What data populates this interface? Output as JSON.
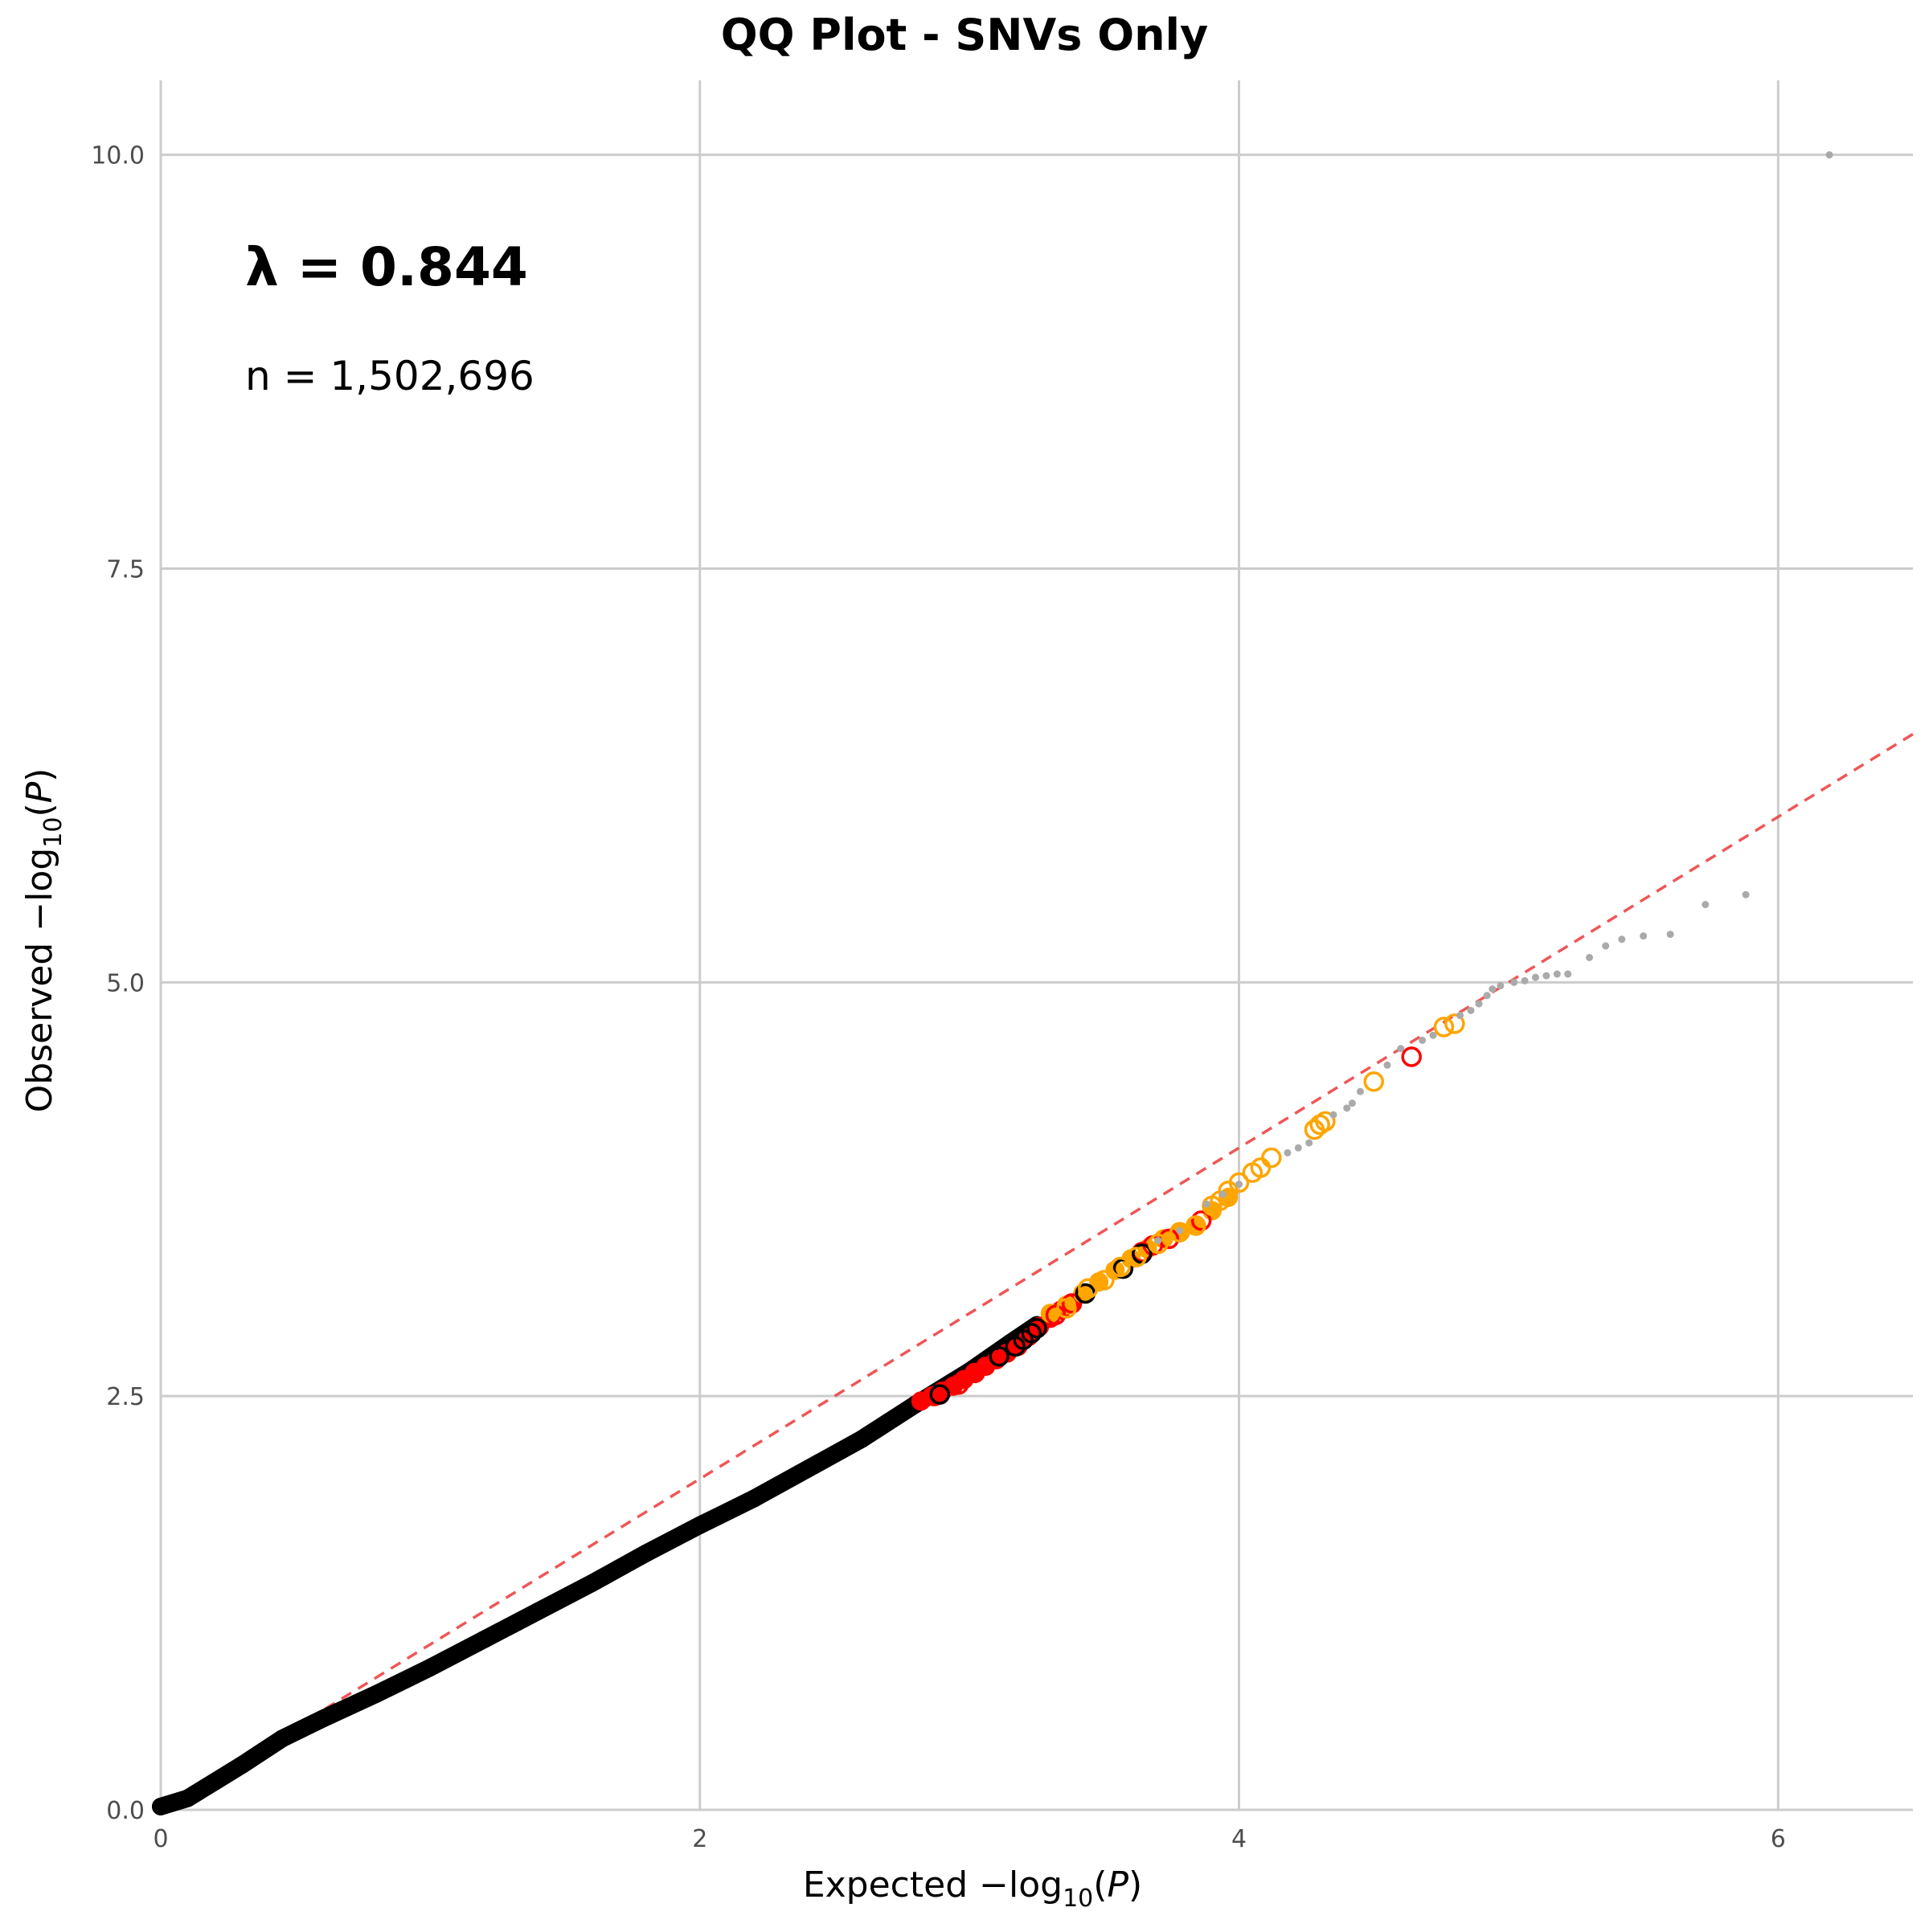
{
  "chart_data": {
    "type": "scatter",
    "title": "QQ Plot - SNVs Only",
    "xlabel": {
      "prefix": "Expected ",
      "dash": "−",
      "log": "log",
      "sub": "10",
      "open": "(",
      "var": "P",
      "close": ")"
    },
    "ylabel": {
      "prefix": "Observed ",
      "dash": "−",
      "log": "log",
      "sub": "10",
      "open": "(",
      "var": "P",
      "close": ")"
    },
    "xlim": [
      0,
      6.5
    ],
    "ylim": [
      0,
      10.45
    ],
    "x_ticks": [
      0,
      2,
      4,
      6
    ],
    "x_tick_labels": [
      "0",
      "2",
      "4",
      "6"
    ],
    "y_ticks": [
      0,
      2.5,
      5,
      7.5,
      10
    ],
    "y_tick_labels": [
      "0.0",
      "2.5",
      "5.0",
      "7.5",
      "10.0"
    ],
    "grid": true,
    "annotations": {
      "lambda": "λ = 0.844",
      "n": "n = 1,502,696"
    },
    "reference_line": {
      "slope": 1,
      "intercept": 0,
      "color": "#ee4444",
      "style": "dashed"
    },
    "colors": {
      "bulk": "#000000",
      "red": "#ff0000",
      "orange": "#ffa500",
      "gray": "#aaaaaa",
      "grid": "#cccccc"
    },
    "series": [
      {
        "style": "bulk-curve",
        "color": "#000000",
        "points": [
          [
            0,
            0.02
          ],
          [
            0.1,
            0.07
          ],
          [
            0.2,
            0.17
          ],
          [
            0.3,
            0.27
          ],
          [
            0.45,
            0.43
          ],
          [
            0.6,
            0.55
          ],
          [
            0.8,
            0.7
          ],
          [
            1.0,
            0.86
          ],
          [
            1.2,
            1.03
          ],
          [
            1.4,
            1.2
          ],
          [
            1.6,
            1.37
          ],
          [
            1.8,
            1.55
          ],
          [
            2.0,
            1.72
          ],
          [
            2.2,
            1.88
          ],
          [
            2.4,
            2.06
          ],
          [
            2.6,
            2.24
          ],
          [
            2.8,
            2.45
          ],
          [
            3.0,
            2.65
          ],
          [
            3.15,
            2.82
          ],
          [
            3.25,
            2.93
          ]
        ]
      },
      {
        "style": "red-dense",
        "color": "#ff0000",
        "x": [
          2.82,
          2.86,
          2.9,
          2.94,
          2.98,
          3.02,
          3.06,
          3.1,
          3.14,
          3.18,
          3.22,
          3.26,
          3.3,
          3.34,
          3.38
        ],
        "y": [
          2.47,
          2.5,
          2.53,
          2.56,
          2.6,
          2.64,
          2.68,
          2.72,
          2.76,
          2.8,
          2.86,
          2.92,
          2.97,
          3.02,
          3.06
        ]
      },
      {
        "style": "orange-dense",
        "color": "#ffa500",
        "x": [
          3.3,
          3.36,
          3.42,
          3.48,
          3.54,
          3.6,
          3.66,
          3.72,
          3.78,
          3.84,
          3.9,
          3.96
        ],
        "y": [
          3.0,
          3.05,
          3.12,
          3.19,
          3.26,
          3.33,
          3.39,
          3.45,
          3.49,
          3.53,
          3.62,
          3.7
        ]
      },
      {
        "style": "open-circle",
        "color": "#ff0000",
        "x": [
          2.87,
          2.96,
          3.02,
          3.32,
          3.38,
          3.64,
          3.68,
          3.74,
          3.86,
          4.64
        ],
        "y": [
          2.5,
          2.57,
          2.64,
          2.99,
          3.06,
          3.37,
          3.41,
          3.45,
          3.56,
          4.55
        ]
      },
      {
        "style": "open-circle",
        "color": "#000000",
        "x": [
          2.89,
          3.11,
          3.17,
          3.2,
          3.23,
          3.25,
          3.43,
          3.57,
          3.64
        ],
        "y": [
          2.51,
          2.74,
          2.8,
          2.84,
          2.88,
          2.91,
          3.12,
          3.27,
          3.36
        ]
      },
      {
        "style": "open-circle",
        "color": "#ffa500",
        "x": [
          3.36,
          3.44,
          3.5,
          3.56,
          3.62,
          3.7,
          3.78,
          3.84,
          3.9,
          3.93,
          3.96,
          4.0,
          4.05,
          4.08,
          4.12,
          4.28,
          4.3,
          4.32,
          4.5,
          4.76,
          4.8
        ],
        "y": [
          3.03,
          3.15,
          3.2,
          3.28,
          3.34,
          3.42,
          3.49,
          3.53,
          3.65,
          3.68,
          3.74,
          3.79,
          3.85,
          3.88,
          3.94,
          4.11,
          4.14,
          4.16,
          4.4,
          4.73,
          4.75
        ]
      },
      {
        "style": "small-dot",
        "color": "#aaaaaa",
        "x": [
          3.7,
          3.78,
          3.88,
          3.94,
          4.0,
          4.18,
          4.22,
          4.26,
          4.35,
          4.4,
          4.42,
          4.45,
          4.55,
          4.6,
          4.68,
          4.72,
          4.82,
          4.86,
          4.89,
          4.92,
          4.94,
          4.97,
          5.02,
          5.06,
          5.1,
          5.14,
          5.18,
          5.22,
          5.3,
          5.36,
          5.42,
          5.5,
          5.6,
          5.73,
          5.88,
          6.19
        ],
        "y": [
          3.44,
          3.5,
          3.66,
          3.72,
          3.78,
          3.97,
          4.0,
          4.03,
          4.2,
          4.24,
          4.27,
          4.34,
          4.5,
          4.6,
          4.65,
          4.68,
          4.8,
          4.83,
          4.87,
          4.92,
          4.96,
          4.98,
          5.0,
          5.01,
          5.03,
          5.04,
          5.05,
          5.05,
          5.15,
          5.22,
          5.26,
          5.28,
          5.29,
          5.47,
          5.53,
          10.0
        ]
      }
    ]
  }
}
